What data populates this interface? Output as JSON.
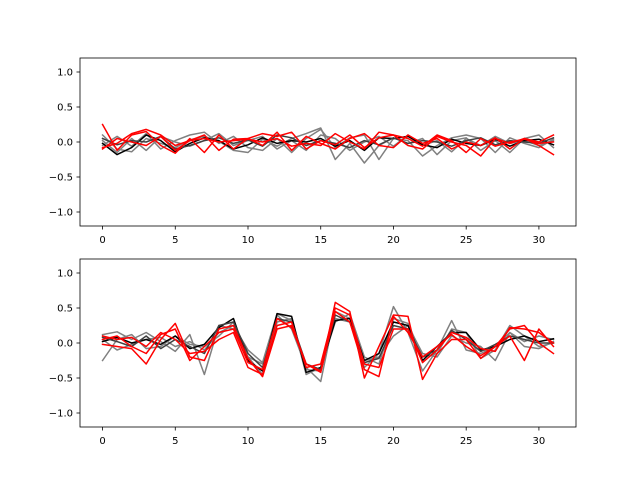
{
  "chart_data": [
    {
      "type": "line",
      "title": "",
      "xlabel": "",
      "ylabel": "",
      "xlim": [
        -1.55,
        32.55
      ],
      "ylim": [
        -1.2,
        1.2
      ],
      "xticks": [
        0,
        5,
        10,
        15,
        20,
        25,
        30
      ],
      "yticks": [
        -1.0,
        -0.5,
        0.0,
        0.5,
        1.0
      ],
      "xtick_labels": [
        "0",
        "5",
        "10",
        "15",
        "20",
        "25",
        "30"
      ],
      "ytick_labels": [
        "−1.0",
        "−0.5",
        "0.0",
        "0.5",
        "1.0"
      ],
      "x": [
        0,
        1,
        2,
        3,
        4,
        5,
        6,
        7,
        8,
        9,
        10,
        11,
        12,
        13,
        14,
        15,
        16,
        17,
        18,
        19,
        20,
        21,
        22,
        23,
        24,
        25,
        26,
        27,
        28,
        29,
        30,
        31
      ],
      "series": [
        {
          "color": "#808080",
          "values": [
            0.1,
            -0.1,
            -0.14,
            0.05,
            -0.02,
            -0.08,
            0.03,
            0.08,
            0.01,
            -0.12,
            -0.15,
            0.04,
            -0.06,
            0.05,
            0.12,
            0.2,
            -0.25,
            -0.02,
            -0.3,
            -0.05,
            0.06,
            -0.02,
            0.05,
            -0.18,
            0.02,
            0.06,
            -0.12,
            0.02,
            -0.15,
            0.05,
            0.1,
            -0.08
          ]
        },
        {
          "color": "#808080",
          "values": [
            -0.05,
            0.08,
            -0.06,
            0.12,
            -0.1,
            0.02,
            0.1,
            0.14,
            -0.02,
            0.08,
            -0.08,
            -0.12,
            0.05,
            -0.15,
            0.05,
            0.18,
            -0.08,
            0.06,
            0.1,
            -0.25,
            0.05,
            0.02,
            -0.2,
            -0.05,
            0.06,
            0.1,
            0.05,
            -0.15,
            0.06,
            -0.02,
            -0.08,
            0.04
          ]
        },
        {
          "color": "#808080",
          "values": [
            0.02,
            -0.15,
            0.05,
            -0.12,
            0.08,
            0.0,
            -0.06,
            0.02,
            0.12,
            -0.05,
            0.02,
            0.08,
            -0.1,
            0.02,
            -0.12,
            0.1,
            0.05,
            -0.12,
            0.0,
            0.08,
            -0.06,
            0.1,
            -0.05,
            0.02,
            -0.14,
            0.05,
            -0.05,
            0.08,
            -0.02,
            0.02,
            -0.05,
            0.02
          ]
        },
        {
          "color": "#000000",
          "values": [
            -0.02,
            -0.18,
            -0.08,
            0.1,
            0.02,
            -0.14,
            -0.02,
            0.06,
            0.02,
            -0.1,
            -0.04,
            0.06,
            -0.02,
            0.02,
            0.0,
            0.05,
            -0.06,
            0.02,
            -0.12,
            0.06,
            0.05,
            0.08,
            -0.04,
            -0.08,
            0.04,
            -0.02,
            -0.05,
            0.04,
            -0.06,
            0.02,
            0.04,
            -0.04
          ]
        },
        {
          "color": "#404040",
          "values": [
            0.05,
            -0.04,
            0.02,
            0.0,
            0.08,
            -0.1,
            -0.05,
            0.02,
            0.06,
            -0.02,
            0.03,
            -0.06,
            0.1,
            0.06,
            -0.05,
            0.02,
            -0.02,
            -0.08,
            0.02,
            -0.04,
            0.06,
            -0.02,
            0.02,
            0.0,
            -0.06,
            0.02,
            0.06,
            -0.04,
            0.02,
            0.0,
            -0.02,
            0.06
          ]
        },
        {
          "color": "#ff0000",
          "values": [
            0.25,
            -0.12,
            0.1,
            0.15,
            -0.05,
            -0.16,
            0.05,
            -0.15,
            0.1,
            -0.1,
            0.05,
            -0.05,
            0.14,
            -0.12,
            0.08,
            -0.02,
            -0.1,
            0.05,
            0.12,
            -0.05,
            -0.08,
            0.1,
            -0.02,
            0.05,
            -0.1,
            0.0,
            -0.05,
            0.06,
            -0.1,
            0.05,
            0.0,
            0.1
          ]
        },
        {
          "color": "#ff0000",
          "values": [
            -0.1,
            0.05,
            0.0,
            -0.05,
            0.08,
            -0.12,
            0.02,
            0.1,
            -0.12,
            0.04,
            0.05,
            0.12,
            0.08,
            0.14,
            -0.1,
            0.02,
            -0.04,
            0.1,
            -0.08,
            0.06,
            0.1,
            -0.05,
            -0.1,
            0.08,
            0.0,
            -0.05,
            -0.2,
            0.05,
            -0.02,
            0.05,
            -0.05,
            -0.18
          ]
        },
        {
          "color": "#ff0000",
          "values": [
            -0.08,
            -0.02,
            0.12,
            0.18,
            0.1,
            -0.05,
            0.02,
            0.05,
            0.0,
            0.02,
            0.04,
            0.0,
            0.05,
            -0.06,
            -0.02,
            -0.05,
            0.12,
            0.0,
            -0.1,
            0.14,
            0.1,
            0.05,
            -0.06,
            0.1,
            0.02,
            -0.15,
            0.05,
            -0.06,
            0.0,
            0.04,
            -0.02,
            0.0
          ]
        }
      ]
    },
    {
      "type": "line",
      "title": "",
      "xlabel": "",
      "ylabel": "",
      "xlim": [
        -1.55,
        32.55
      ],
      "ylim": [
        -1.2,
        1.2
      ],
      "xticks": [
        0,
        5,
        10,
        15,
        20,
        25,
        30
      ],
      "yticks": [
        -1.0,
        -0.5,
        0.0,
        0.5,
        1.0
      ],
      "xtick_labels": [
        "0",
        "5",
        "10",
        "15",
        "20",
        "25",
        "30"
      ],
      "ytick_labels": [
        "−1.0",
        "−0.5",
        "0.0",
        "0.5",
        "1.0"
      ],
      "x": [
        0,
        1,
        2,
        3,
        4,
        5,
        6,
        7,
        8,
        9,
        10,
        11,
        12,
        13,
        14,
        15,
        16,
        17,
        18,
        19,
        20,
        21,
        22,
        23,
        24,
        25,
        26,
        27,
        28,
        29,
        30,
        31
      ],
      "series": [
        {
          "color": "#808080",
          "values": [
            0.12,
            0.16,
            0.05,
            0.15,
            0.02,
            -0.12,
            0.12,
            -0.45,
            0.25,
            0.2,
            -0.2,
            -0.3,
            0.4,
            0.2,
            -0.35,
            -0.55,
            0.45,
            0.35,
            -0.35,
            -0.15,
            0.52,
            0.15,
            -0.4,
            -0.1,
            0.32,
            -0.1,
            -0.15,
            -0.05,
            0.15,
            0.02,
            0.1,
            0.05
          ]
        },
        {
          "color": "#808080",
          "values": [
            -0.25,
            0.05,
            0.12,
            -0.08,
            -0.05,
            0.1,
            -0.02,
            -0.05,
            0.1,
            0.3,
            -0.2,
            -0.45,
            0.3,
            0.35,
            -0.45,
            -0.35,
            0.3,
            0.42,
            -0.2,
            -0.3,
            0.35,
            0.28,
            -0.2,
            -0.15,
            0.2,
            0.15,
            -0.22,
            -0.1,
            0.25,
            0.1,
            -0.05,
            0.0
          ]
        },
        {
          "color": "#808080",
          "values": [
            0.05,
            -0.1,
            -0.02,
            0.05,
            0.08,
            -0.05,
            0.02,
            -0.1,
            0.15,
            0.25,
            -0.1,
            -0.28,
            0.42,
            0.32,
            -0.38,
            -0.4,
            0.35,
            0.3,
            -0.25,
            -0.2,
            0.1,
            0.25,
            -0.15,
            -0.2,
            0.1,
            0.0,
            -0.05,
            -0.25,
            0.15,
            -0.05,
            -0.08,
            0.02
          ]
        },
        {
          "color": "#000000",
          "values": [
            0.02,
            0.08,
            0.0,
            0.05,
            -0.02,
            0.1,
            -0.08,
            -0.02,
            0.22,
            0.35,
            -0.25,
            -0.4,
            0.42,
            0.38,
            -0.42,
            -0.35,
            0.32,
            0.35,
            -0.25,
            -0.15,
            0.3,
            0.25,
            -0.25,
            -0.05,
            0.15,
            0.15,
            -0.1,
            -0.05,
            0.05,
            0.1,
            0.02,
            0.06
          ]
        },
        {
          "color": "#404040",
          "values": [
            0.08,
            0.02,
            -0.05,
            0.1,
            -0.08,
            0.05,
            -0.05,
            -0.15,
            0.25,
            0.3,
            -0.15,
            -0.35,
            0.35,
            0.3,
            -0.3,
            -0.38,
            0.4,
            0.3,
            -0.28,
            -0.22,
            0.25,
            0.2,
            -0.2,
            -0.1,
            0.18,
            0.05,
            -0.12,
            -0.02,
            0.1,
            0.05,
            0.0,
            0.0
          ]
        },
        {
          "color": "#ff0000",
          "values": [
            -0.02,
            -0.05,
            -0.08,
            -0.3,
            0.05,
            0.28,
            -0.2,
            -0.25,
            0.2,
            0.25,
            -0.22,
            -0.48,
            0.2,
            0.25,
            -0.3,
            -0.4,
            0.58,
            0.45,
            -0.5,
            -0.05,
            0.4,
            0.38,
            -0.52,
            -0.15,
            0.05,
            0.05,
            -0.22,
            -0.05,
            0.2,
            0.25,
            0.0,
            -0.15
          ]
        },
        {
          "color": "#ff0000",
          "values": [
            0.05,
            0.1,
            -0.05,
            -0.15,
            0.12,
            0.2,
            -0.25,
            -0.05,
            0.15,
            0.2,
            -0.28,
            -0.38,
            0.35,
            0.22,
            -0.3,
            -0.42,
            0.45,
            0.3,
            -0.38,
            -0.48,
            0.38,
            0.15,
            -0.2,
            -0.05,
            0.12,
            -0.05,
            -0.18,
            -0.05,
            0.1,
            -0.25,
            0.2,
            -0.05
          ]
        },
        {
          "color": "#ff0000",
          "values": [
            0.1,
            0.05,
            0.08,
            -0.05,
            0.15,
            0.05,
            -0.15,
            -0.12,
            0.05,
            0.15,
            -0.35,
            -0.45,
            0.25,
            0.3,
            -0.35,
            -0.3,
            0.5,
            0.4,
            -0.3,
            -0.35,
            0.2,
            0.2,
            -0.28,
            -0.1,
            0.15,
            0.08,
            -0.08,
            -0.12,
            0.22,
            0.2,
            0.15,
            0.0
          ]
        }
      ]
    }
  ]
}
